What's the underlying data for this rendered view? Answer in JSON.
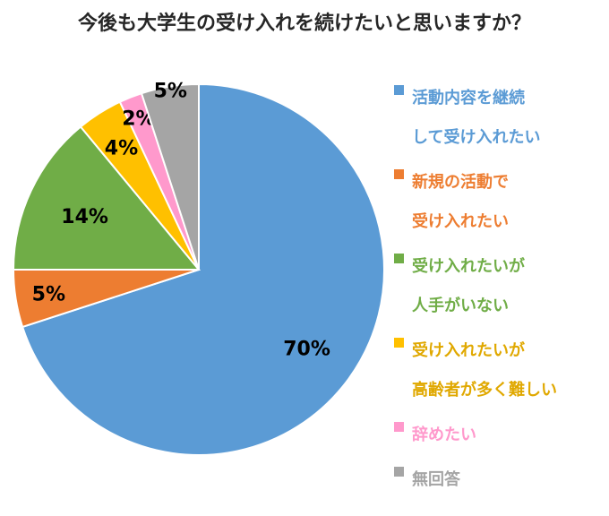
{
  "chart_data": {
    "type": "pie",
    "title": "今後も大学生の受け入れを続けたいと思いますか？",
    "categories": [
      "活動内容を継続\nして受け入れたい",
      "新規の活動で\n受け入れたい",
      "受け入れたいが\n人手がいない",
      "受け入れたいが\n高齢者が多く難しい",
      "辞めたい",
      "無回答"
    ],
    "values": [
      70,
      5,
      14,
      4,
      2,
      5
    ],
    "data_labels": [
      "70%",
      "5%",
      "14%",
      "4%",
      "2%",
      "5%"
    ],
    "colors": [
      "#5B9BD5",
      "#ED7D31",
      "#70AD47",
      "#FFC000",
      "#FF99CC",
      "#A5A5A5"
    ],
    "legend_position": "right"
  }
}
